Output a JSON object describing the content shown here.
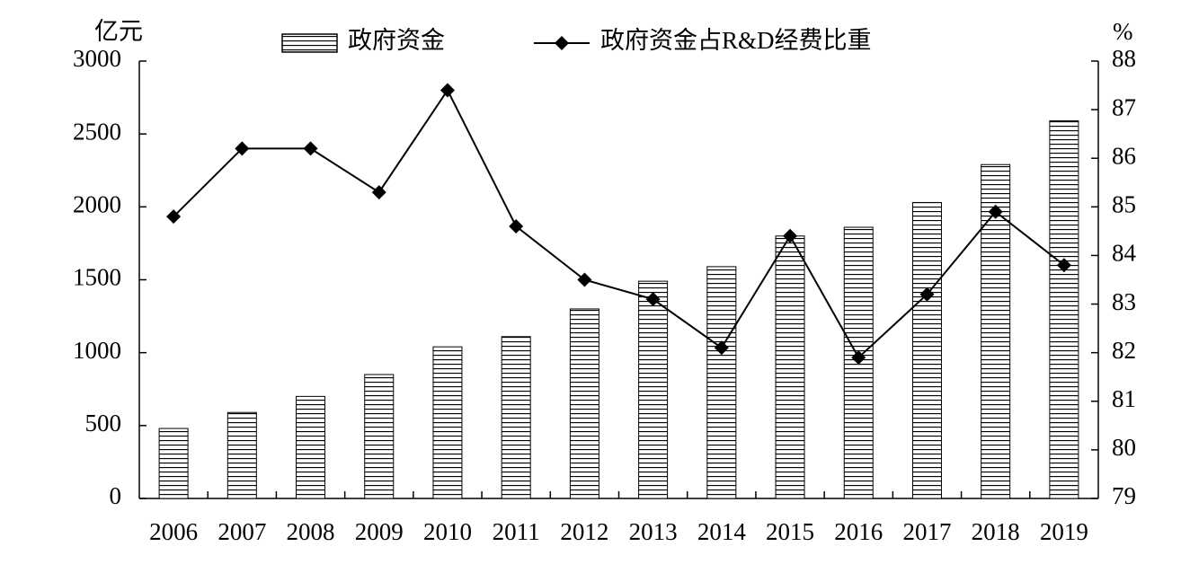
{
  "chart_data": {
    "type": "bar+line",
    "y_label": "亿元",
    "y2_label": "%",
    "categories": [
      "2006",
      "2007",
      "2008",
      "2009",
      "2010",
      "2011",
      "2012",
      "2013",
      "2014",
      "2015",
      "2016",
      "2017",
      "2018",
      "2019"
    ],
    "series": [
      {
        "name": "政府资金",
        "type": "bar",
        "color": "#000000",
        "values": [
          480,
          590,
          700,
          850,
          1040,
          1110,
          1300,
          1490,
          1590,
          1800,
          1860,
          2030,
          2290,
          2590
        ]
      },
      {
        "name": "政府资金占R&D经费比重",
        "type": "line",
        "axis": "y2",
        "color": "#000000",
        "values": [
          84.8,
          86.2,
          86.2,
          85.3,
          87.4,
          84.6,
          83.5,
          83.1,
          82.1,
          84.4,
          81.9,
          83.2,
          84.9,
          83.8
        ]
      }
    ],
    "ylim": [
      0,
      3000
    ],
    "yticks": [
      0,
      500,
      1000,
      1500,
      2000,
      2500,
      3000
    ],
    "y2lim": [
      79,
      88
    ],
    "y2ticks": [
      79,
      80,
      81,
      82,
      83,
      84,
      85,
      86,
      87,
      88
    ],
    "grid": false,
    "legend": "top"
  }
}
